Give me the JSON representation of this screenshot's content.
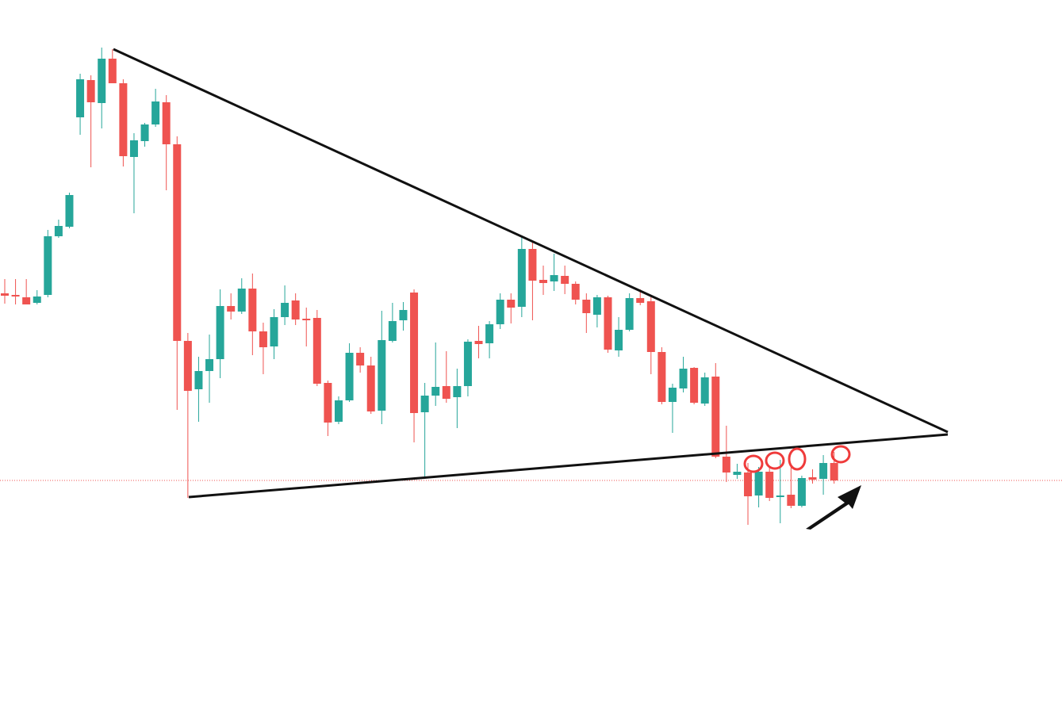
{
  "chart_data": {
    "type": "candlestick",
    "up_color": "#26a69a",
    "down_color": "#ef5350",
    "ylim": [
      0,
      888
    ],
    "open": [
      518,
      516,
      513,
      506,
      516,
      590,
      602,
      740,
      787,
      758,
      814,
      783,
      690,
      710,
      731,
      759,
      706,
      458,
      397,
      420,
      435,
      502,
      495,
      524,
      470,
      451,
      488,
      509,
      486,
      487,
      405,
      356,
      383,
      443,
      427,
      370,
      458,
      484,
      519,
      368,
      389,
      401,
      387,
      401,
      458,
      455,
      479,
      510,
      501,
      574,
      535,
      533,
      540,
      530,
      510,
      491,
      513,
      446,
      472,
      512,
      508,
      444,
      381,
      398,
      424,
      379,
      413,
      312,
      289,
      292,
      263,
      293,
      261,
      264,
      250,
      286,
      284,
      304
    ],
    "high": [
      536,
      536,
      536,
      522,
      598,
      611,
      645,
      795,
      793,
      828,
      826,
      788,
      720,
      733,
      776,
      768,
      716,
      468,
      438,
      466,
      523,
      518,
      537,
      543,
      481,
      498,
      528,
      518,
      500,
      497,
      408,
      388,
      455,
      450,
      438,
      496,
      506,
      507,
      523,
      405,
      456,
      445,
      423,
      460,
      477,
      483,
      518,
      518,
      590,
      584,
      553,
      568,
      553,
      533,
      518,
      516,
      515,
      488,
      518,
      523,
      516,
      450,
      404,
      438,
      425,
      418,
      430,
      351,
      303,
      304,
      299,
      300,
      308,
      301,
      288,
      296,
      314,
      318
    ],
    "low": [
      505,
      504,
      504,
      504,
      513,
      588,
      600,
      718,
      677,
      726,
      783,
      678,
      619,
      703,
      728,
      648,
      371,
      260,
      356,
      380,
      411,
      485,
      492,
      440,
      416,
      435,
      478,
      478,
      451,
      401,
      338,
      353,
      381,
      418,
      366,
      353,
      456,
      471,
      330,
      285,
      376,
      380,
      348,
      388,
      436,
      436,
      473,
      480,
      488,
      484,
      516,
      521,
      517,
      504,
      468,
      475,
      443,
      438,
      470,
      503,
      416,
      378,
      342,
      393,
      378,
      376,
      310,
      280,
      284,
      226,
      248,
      256,
      228,
      247,
      248,
      278,
      264,
      278
    ],
    "close": [
      515,
      514,
      504,
      514,
      590,
      603,
      642,
      788,
      759,
      814,
      783,
      691,
      711,
      731,
      760,
      706,
      458,
      395,
      420,
      435,
      502,
      495,
      524,
      470,
      450,
      488,
      506,
      485,
      484,
      404,
      355,
      383,
      443,
      427,
      369,
      459,
      483,
      497,
      367,
      389,
      400,
      385,
      401,
      457,
      454,
      479,
      510,
      500,
      574,
      534,
      531,
      541,
      530,
      510,
      493,
      513,
      447,
      472,
      512,
      506,
      444,
      381,
      399,
      423,
      380,
      412,
      312,
      292,
      293,
      262,
      293,
      260,
      263,
      250,
      285,
      283,
      304,
      282
    ]
  }
}
